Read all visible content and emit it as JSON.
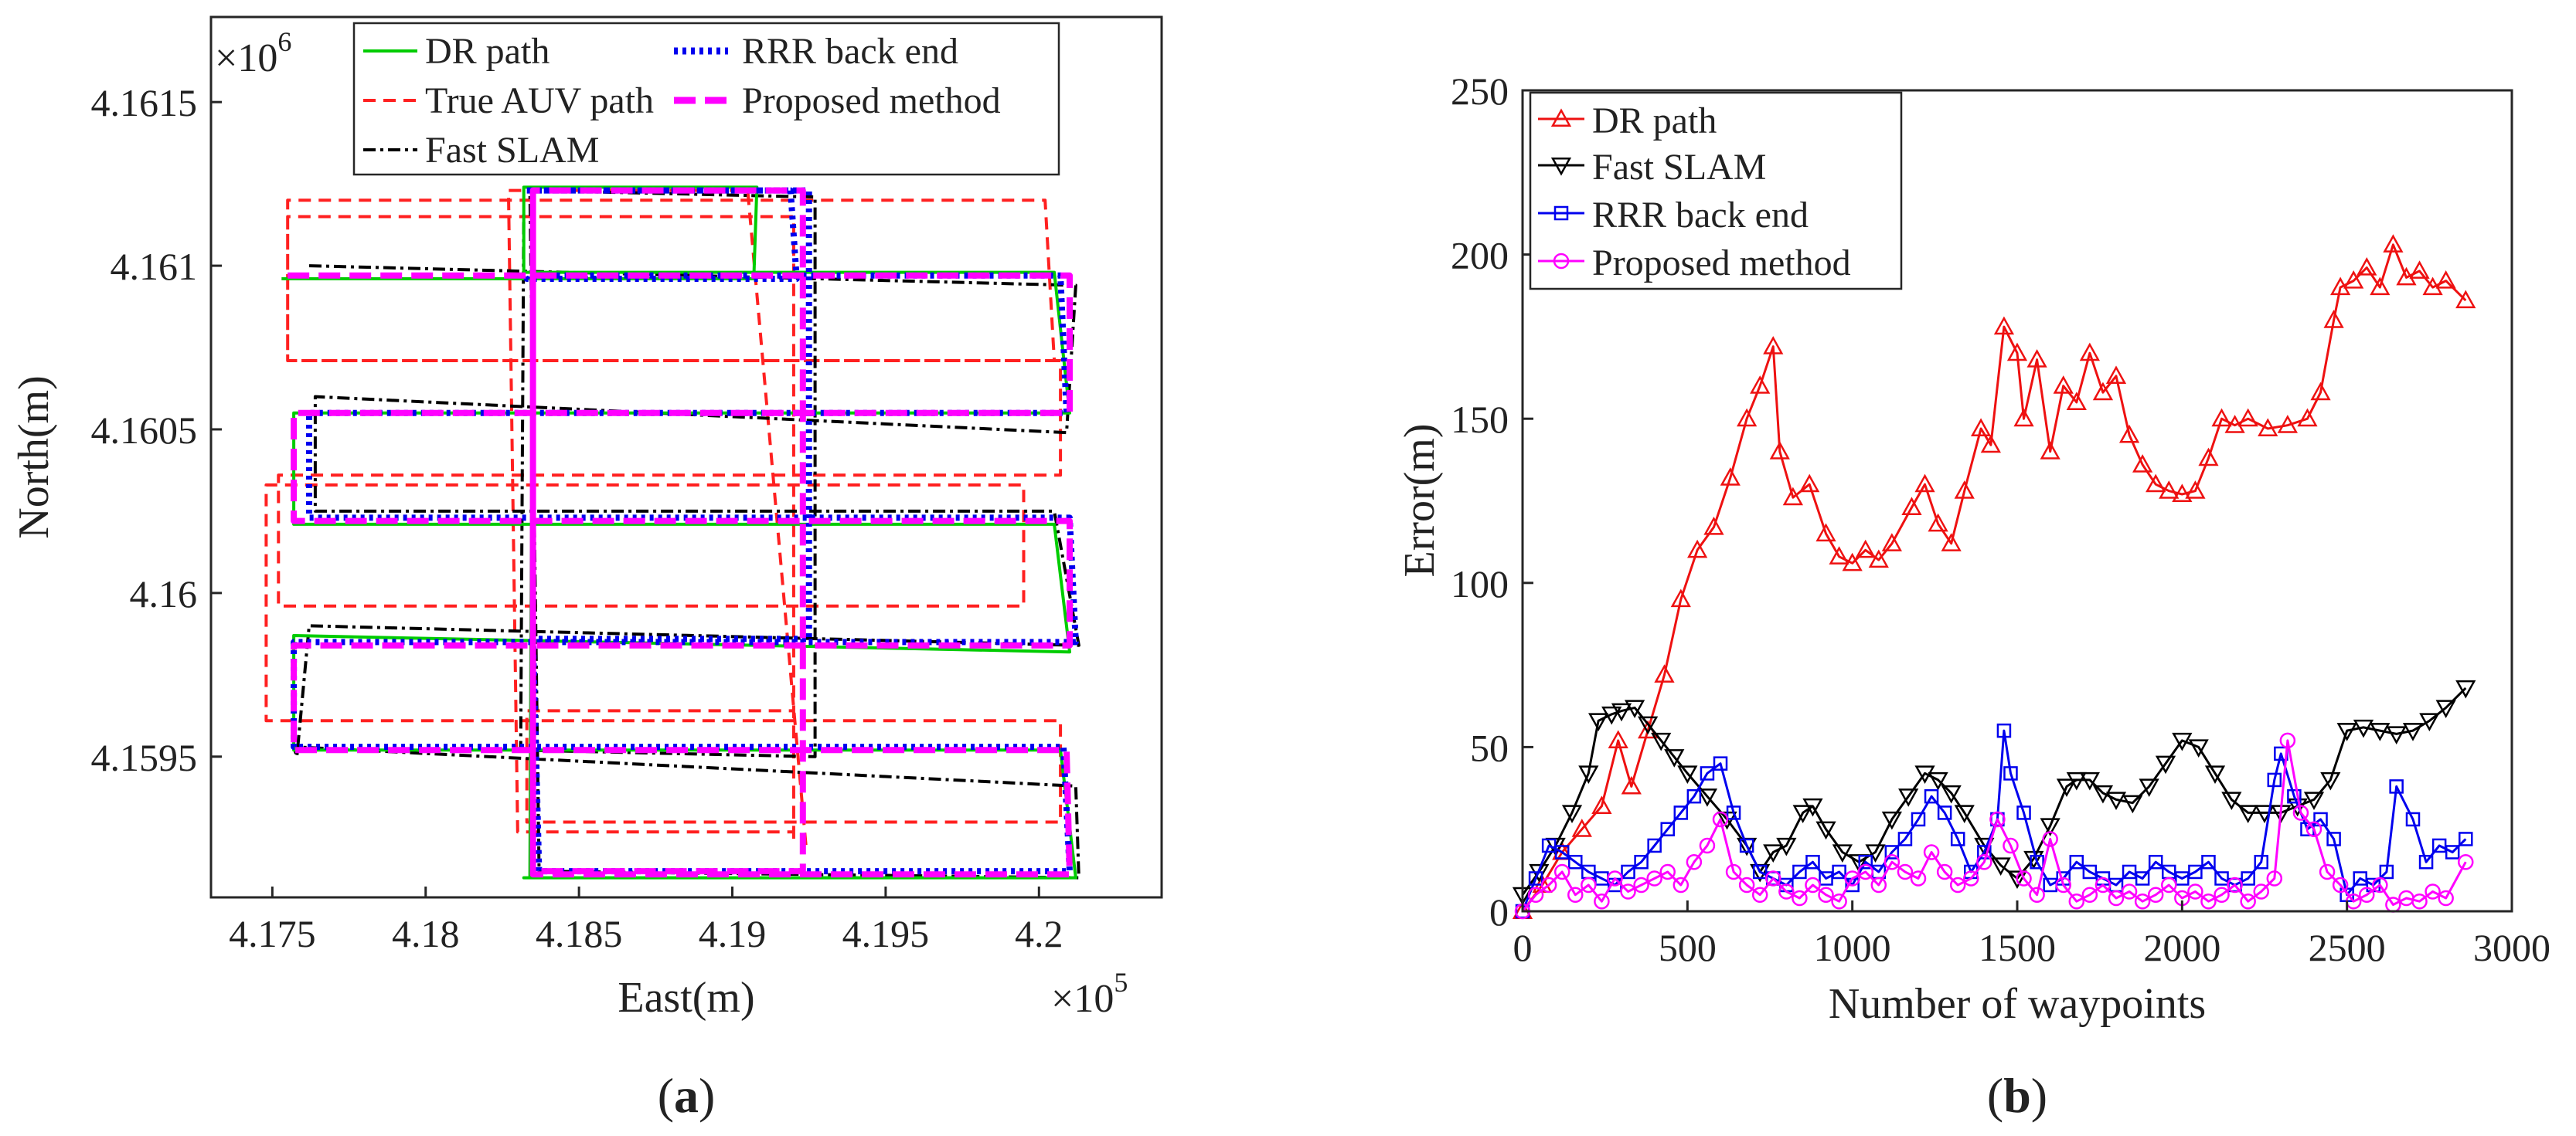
{
  "colors": {
    "dr": "#00cc00",
    "true_auv": "#ff2020",
    "fast_slam": "#000000",
    "rrr": "#0000ee",
    "proposed": "#ff00ff",
    "dr_b": "#ee1111",
    "axis": "#262626"
  },
  "chart_data": [
    {
      "panel_label": "a",
      "type": "line",
      "xlabel": "East(m)",
      "ylabel": "North(m)",
      "x_exponent": "×10",
      "x_exponent_power": "5",
      "y_exponent": "×10",
      "y_exponent_power": "6",
      "xlim": [
        4.173,
        4.204
      ],
      "ylim": [
        4.15907,
        4.16176
      ],
      "x_ticks": [
        4.175,
        4.18,
        4.185,
        4.19,
        4.195,
        4.2
      ],
      "x_tick_labels": [
        "4.175",
        "4.18",
        "4.185",
        "4.19",
        "4.195",
        "4.2"
      ],
      "y_ticks": [
        4.1595,
        4.16,
        4.1605,
        4.161,
        4.1615
      ],
      "y_tick_labels": [
        "4.1595",
        "4.16",
        "4.1605",
        "4.161",
        "4.1615"
      ],
      "legend": {
        "placement": "top",
        "entries": [
          "DR path",
          "RRR back end",
          "True AUV path",
          "Proposed method",
          "Fast SLAM"
        ]
      },
      "series": [
        {
          "name": "True AUV path",
          "style": "dashed",
          "x": [
            4.1924,
            4.1905,
            4.1827,
            4.183,
            4.192,
            4.192,
            4.1755,
            4.1755,
            4.2005,
            4.2002,
            4.1755,
            4.1755,
            4.2007,
            4.2007,
            4.1752,
            4.1752,
            4.1995,
            4.1995,
            4.1748,
            4.1748,
            4.2007,
            4.2007,
            4.1833,
            4.1833,
            4.192,
            4.192
          ],
          "y": [
            4.15923,
            4.16123,
            4.16123,
            4.15927,
            4.15927,
            4.16115,
            4.16115,
            4.16071,
            4.16071,
            4.1612,
            4.1612,
            4.16071,
            4.16071,
            4.16036,
            4.16036,
            4.15996,
            4.15996,
            4.16033,
            4.16033,
            4.15961,
            4.15961,
            4.1593,
            4.1593,
            4.15964,
            4.15964,
            4.15923
          ]
        },
        {
          "name": "Fast SLAM",
          "style": "dashdot",
          "x": [
            4.1762,
            4.2012,
            4.2009,
            4.1764,
            4.1764,
            4.2005,
            4.2013,
            4.1762,
            4.1758,
            4.1757,
            4.2012,
            4.2013,
            4.1837,
            4.1834,
            4.1927,
            4.1927,
            4.1831,
            4.1832
          ],
          "y": [
            4.161,
            4.16094,
            4.16049,
            4.1606,
            4.16025,
            4.16025,
            4.15984,
            4.1599,
            4.1595,
            4.15953,
            4.15941,
            4.15913,
            4.15915,
            4.16123,
            4.16121,
            4.1595,
            4.15952,
            4.16117
          ]
        },
        {
          "name": "DR path",
          "style": "solid",
          "x": [
            4.1753,
            4.1907,
            4.1908,
            4.1832,
            4.1832,
            4.2005,
            4.201,
            4.1757,
            4.1757,
            4.2005,
            4.201,
            4.1757,
            4.1757,
            4.2007,
            4.2012,
            4.1833,
            4.1833,
            4.1925,
            4.1925,
            4.1832,
            4.1834,
            4.1835
          ],
          "y": [
            4.16096,
            4.16096,
            4.16124,
            4.16124,
            4.16098,
            4.16098,
            4.16055,
            4.16055,
            4.16021,
            4.16021,
            4.15982,
            4.15987,
            4.15952,
            4.15952,
            4.15913,
            4.15913,
            4.15913,
            4.15913,
            4.15913,
            4.15913,
            4.15913,
            4.16124
          ]
        },
        {
          "name": "RRR back end",
          "style": "dotted",
          "x": [
            4.1833,
            4.1919,
            4.1921,
            4.1833,
            4.1833,
            4.2007,
            4.2009,
            4.1762,
            4.1762,
            4.201,
            4.2012,
            4.1757,
            4.1757,
            4.2008,
            4.201,
            4.1837,
            4.1835,
            4.1925,
            4.1925,
            4.1833
          ],
          "y": [
            4.16123,
            4.16123,
            4.16096,
            4.16096,
            4.16097,
            4.16097,
            4.16055,
            4.16055,
            4.16023,
            4.16023,
            4.15985,
            4.15985,
            4.15953,
            4.15953,
            4.15915,
            4.15915,
            4.15986,
            4.15986,
            4.16123,
            4.16123
          ]
        },
        {
          "name": "Proposed method",
          "style": "dashed-thick",
          "x": [
            4.1755,
            4.201,
            4.201,
            4.1757,
            4.1757,
            4.201,
            4.201,
            4.1757,
            4.1757,
            4.2009,
            4.201,
            4.1835,
            4.1835,
            4.1923,
            4.1923,
            4.1835,
            4.1835
          ],
          "y": [
            4.16097,
            4.16097,
            4.16055,
            4.16055,
            4.16022,
            4.16022,
            4.15984,
            4.15984,
            4.15952,
            4.15952,
            4.15914,
            4.15914,
            4.16123,
            4.16123,
            4.15915,
            4.15915,
            4.16123
          ]
        }
      ]
    },
    {
      "panel_label": "b",
      "type": "line",
      "xlabel": "Number of waypoints",
      "ylabel": "Error(m)",
      "xlim": [
        0,
        3000
      ],
      "ylim": [
        0,
        250
      ],
      "x_ticks": [
        0,
        500,
        1000,
        1500,
        2000,
        2500,
        3000
      ],
      "x_tick_labels": [
        "0",
        "500",
        "1000",
        "1500",
        "2000",
        "2500",
        "3000"
      ],
      "y_ticks": [
        0,
        50,
        100,
        150,
        200,
        250
      ],
      "y_tick_labels": [
        "0",
        "50",
        "100",
        "150",
        "200",
        "250"
      ],
      "legend": {
        "placement": "top-left",
        "entries": [
          "DR path",
          "Fast SLAM",
          "RRR back end",
          "Proposed method"
        ]
      },
      "series": [
        {
          "name": "DR path",
          "marker": "triangle-up",
          "x": [
            0,
            60,
            120,
            180,
            240,
            290,
            330,
            380,
            430,
            480,
            530,
            580,
            630,
            680,
            720,
            760,
            780,
            820,
            870,
            920,
            960,
            1000,
            1040,
            1080,
            1120,
            1180,
            1220,
            1260,
            1300,
            1340,
            1390,
            1420,
            1460,
            1500,
            1520,
            1560,
            1600,
            1640,
            1680,
            1720,
            1760,
            1800,
            1840,
            1880,
            1920,
            1960,
            2000,
            2040,
            2080,
            2120,
            2160,
            2200,
            2260,
            2320,
            2380,
            2420,
            2460,
            2480,
            2520,
            2560,
            2600,
            2640,
            2680,
            2720,
            2760,
            2800,
            2860
          ],
          "y": [
            0,
            8,
            18,
            25,
            32,
            52,
            38,
            55,
            72,
            95,
            110,
            117,
            132,
            150,
            160,
            172,
            140,
            126,
            130,
            115,
            108,
            106,
            110,
            107,
            112,
            123,
            130,
            118,
            112,
            128,
            147,
            142,
            178,
            170,
            150,
            168,
            140,
            160,
            155,
            170,
            158,
            163,
            145,
            136,
            130,
            128,
            127,
            128,
            138,
            150,
            148,
            150,
            147,
            148,
            150,
            158,
            180,
            190,
            192,
            196,
            190,
            203,
            193,
            195,
            190,
            192,
            186
          ]
        },
        {
          "name": "Fast SLAM",
          "marker": "triangle-down",
          "x": [
            0,
            50,
            100,
            150,
            200,
            230,
            270,
            300,
            340,
            380,
            420,
            460,
            500,
            560,
            620,
            680,
            720,
            760,
            800,
            850,
            880,
            920,
            970,
            1020,
            1070,
            1120,
            1170,
            1220,
            1260,
            1300,
            1340,
            1400,
            1450,
            1500,
            1550,
            1600,
            1650,
            1680,
            1720,
            1760,
            1800,
            1850,
            1900,
            1950,
            2000,
            2050,
            2100,
            2150,
            2200,
            2250,
            2300,
            2350,
            2400,
            2450,
            2500,
            2550,
            2600,
            2650,
            2700,
            2750,
            2800,
            2860
          ],
          "y": [
            5,
            12,
            20,
            30,
            42,
            58,
            60,
            61,
            62,
            57,
            52,
            47,
            42,
            35,
            28,
            20,
            12,
            18,
            20,
            30,
            32,
            25,
            18,
            15,
            18,
            28,
            35,
            42,
            40,
            36,
            30,
            20,
            14,
            10,
            16,
            26,
            38,
            40,
            40,
            36,
            34,
            33,
            38,
            45,
            52,
            50,
            42,
            34,
            30,
            30,
            30,
            32,
            34,
            40,
            55,
            56,
            55,
            54,
            55,
            58,
            62,
            68
          ]
        },
        {
          "name": "RRR back end",
          "marker": "square",
          "x": [
            0,
            40,
            80,
            120,
            160,
            200,
            240,
            280,
            320,
            360,
            400,
            440,
            480,
            520,
            560,
            600,
            640,
            680,
            720,
            760,
            800,
            840,
            880,
            920,
            960,
            1000,
            1040,
            1080,
            1120,
            1160,
            1200,
            1240,
            1280,
            1320,
            1360,
            1400,
            1440,
            1460,
            1480,
            1520,
            1560,
            1600,
            1640,
            1680,
            1720,
            1760,
            1800,
            1840,
            1880,
            1920,
            1960,
            2000,
            2040,
            2080,
            2120,
            2160,
            2200,
            2240,
            2280,
            2300,
            2340,
            2380,
            2420,
            2460,
            2500,
            2540,
            2580,
            2620,
            2650,
            2700,
            2740,
            2780,
            2820,
            2860
          ],
          "y": [
            0,
            10,
            20,
            18,
            15,
            12,
            10,
            8,
            12,
            15,
            20,
            25,
            30,
            35,
            42,
            45,
            30,
            20,
            12,
            10,
            8,
            12,
            15,
            10,
            12,
            8,
            15,
            12,
            18,
            22,
            28,
            35,
            30,
            22,
            12,
            18,
            28,
            55,
            42,
            30,
            15,
            8,
            10,
            15,
            12,
            10,
            8,
            12,
            10,
            15,
            12,
            10,
            12,
            15,
            10,
            8,
            10,
            15,
            40,
            48,
            35,
            25,
            28,
            22,
            5,
            10,
            8,
            12,
            38,
            28,
            15,
            20,
            18,
            22
          ]
        },
        {
          "name": "Proposed method",
          "marker": "circle",
          "x": [
            0,
            40,
            80,
            120,
            160,
            200,
            240,
            280,
            320,
            360,
            400,
            440,
            480,
            520,
            560,
            600,
            640,
            680,
            720,
            760,
            800,
            840,
            880,
            920,
            960,
            1000,
            1040,
            1080,
            1120,
            1160,
            1200,
            1240,
            1280,
            1320,
            1360,
            1400,
            1440,
            1480,
            1520,
            1560,
            1600,
            1640,
            1680,
            1720,
            1760,
            1800,
            1840,
            1880,
            1920,
            1960,
            2000,
            2040,
            2080,
            2120,
            2160,
            2200,
            2240,
            2280,
            2320,
            2360,
            2400,
            2440,
            2480,
            2520,
            2560,
            2600,
            2640,
            2680,
            2720,
            2760,
            2800,
            2860
          ],
          "y": [
            0,
            5,
            8,
            12,
            5,
            8,
            3,
            10,
            6,
            8,
            10,
            12,
            8,
            15,
            20,
            28,
            12,
            8,
            5,
            10,
            6,
            4,
            8,
            5,
            3,
            10,
            12,
            8,
            15,
            12,
            10,
            18,
            12,
            8,
            10,
            15,
            28,
            20,
            10,
            5,
            22,
            8,
            3,
            5,
            8,
            4,
            6,
            3,
            5,
            8,
            4,
            6,
            3,
            5,
            8,
            3,
            6,
            10,
            52,
            30,
            25,
            12,
            8,
            3,
            5,
            8,
            2,
            4,
            3,
            6,
            4,
            15
          ]
        }
      ]
    }
  ]
}
